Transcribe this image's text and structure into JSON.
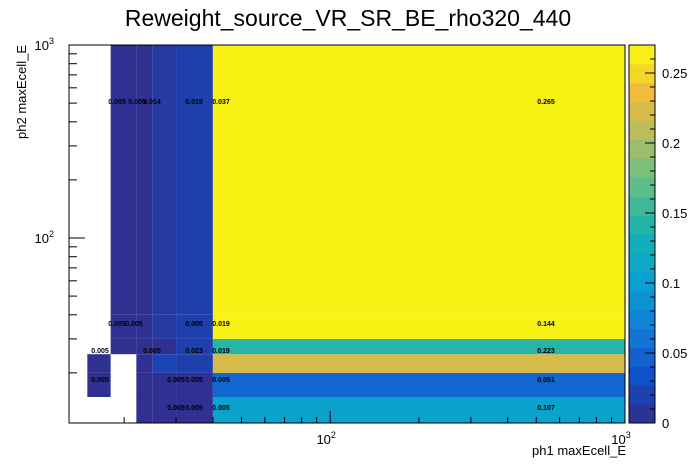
{
  "chart_data": {
    "type": "heatmap",
    "title": "Reweight_source_VR_SR_BE_rho320_440",
    "xlabel": "ph1 maxEcell_E",
    "ylabel": "ph2 maxEcell_E",
    "xscale": "log",
    "yscale": "log",
    "xlim": [
      13,
      1000
    ],
    "ylim": [
      11,
      1000
    ],
    "x_ticks": [
      {
        "value": 100,
        "base": "10",
        "exp": "2"
      },
      {
        "value": 1000,
        "base": "10",
        "exp": "3"
      }
    ],
    "y_ticks": [
      {
        "value": 100,
        "base": "10",
        "exp": "2"
      },
      {
        "value": 1000,
        "base": "10",
        "exp": "3"
      }
    ],
    "colorbar": {
      "min": 0,
      "max": 0.27,
      "ticks": [
        {
          "value": 0,
          "label": "0"
        },
        {
          "value": 0.05,
          "label": "0.05"
        },
        {
          "value": 0.1,
          "label": "0.1"
        },
        {
          "value": 0.15,
          "label": "0.15"
        },
        {
          "value": 0.2,
          "label": "0.2"
        },
        {
          "value": 0.25,
          "label": "0.25"
        }
      ]
    },
    "x_edges": [
      13,
      15,
      18,
      22,
      25,
      30,
      40,
      1000
    ],
    "y_edges": [
      11,
      15,
      20,
      25,
      30,
      40,
      1000
    ],
    "cells": [
      {
        "xi": 3,
        "yi": 0,
        "value": 0.005,
        "label": "0.005"
      },
      {
        "xi": 4,
        "yi": 0,
        "value": 0.005,
        "label": "0.005"
      },
      {
        "xi": 5,
        "yi": 0,
        "value": 0.005,
        "label": "0.005"
      },
      {
        "xi": 6,
        "yi": 0,
        "value": 0.107,
        "label": "0.107"
      },
      {
        "xi": 1,
        "yi": 1,
        "value": 0.005,
        "label": "0.005"
      },
      {
        "xi": 3,
        "yi": 1,
        "value": 0.005,
        "label": "0.005"
      },
      {
        "xi": 4,
        "yi": 1,
        "value": 0.005,
        "label": "0.005"
      },
      {
        "xi": 5,
        "yi": 1,
        "value": 0.005,
        "label": "0.005"
      },
      {
        "xi": 6,
        "yi": 1,
        "value": 0.051,
        "label": "0.051"
      },
      {
        "xi": 1,
        "yi": 2,
        "value": 0.005,
        "label": "0.005"
      },
      {
        "xi": 3,
        "yi": 2,
        "value": 0.005,
        "label": "0.005"
      },
      {
        "xi": 4,
        "yi": 2,
        "value": 0.023,
        "label": "0.023"
      },
      {
        "xi": 5,
        "yi": 2,
        "value": 0.019,
        "label": "0.019"
      },
      {
        "xi": 6,
        "yi": 2,
        "value": 0.223,
        "label": "0.223"
      },
      {
        "xi": 2,
        "yi": 3,
        "value": 0.005,
        "label": "0.005"
      },
      {
        "xi": 3,
        "yi": 3,
        "value": 0.005,
        "label": "0.005"
      },
      {
        "xi": 4,
        "yi": 3,
        "value": 0.005,
        "label": "0.005"
      },
      {
        "xi": 5,
        "yi": 3,
        "value": 0.019,
        "label": "0.019"
      },
      {
        "xi": 6,
        "yi": 3,
        "value": 0.144,
        "label": "0.144"
      },
      {
        "xi": 2,
        "yi": 4,
        "value": 0.005,
        "label": ""
      },
      {
        "xi": 3,
        "yi": 4,
        "value": 0.005,
        "label": ""
      },
      {
        "xi": 4,
        "yi": 4,
        "value": 0.014,
        "label": ""
      },
      {
        "xi": 5,
        "yi": 4,
        "value": 0.019,
        "label": ""
      },
      {
        "xi": 6,
        "yi": 4,
        "value": 0.265,
        "label": ""
      },
      {
        "xi": 2,
        "yi": 5,
        "value": 0.005,
        "label": "0.005"
      },
      {
        "xi": 3,
        "yi": 5,
        "value": 0.005,
        "label": "0.005"
      },
      {
        "xi": 4,
        "yi": 5,
        "value": 0.014,
        "label": "0.014"
      },
      {
        "xi": 5,
        "yi": 5,
        "value": 0.019,
        "label": "0.019"
      },
      {
        "xi": 5.5,
        "yi": 5,
        "value": 0.037,
        "label": "0.037"
      },
      {
        "xi": 6,
        "yi": 5,
        "value": 0.265,
        "label": "0.265"
      }
    ]
  }
}
